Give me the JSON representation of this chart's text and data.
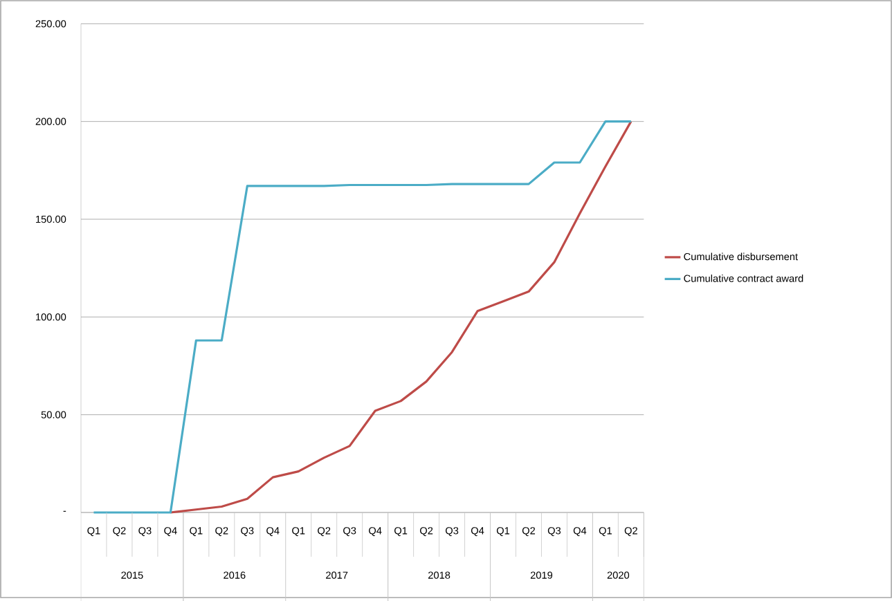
{
  "chart_data": {
    "type": "line",
    "categories": [
      "Q1",
      "Q2",
      "Q3",
      "Q4",
      "Q1",
      "Q2",
      "Q3",
      "Q4",
      "Q1",
      "Q2",
      "Q3",
      "Q4",
      "Q1",
      "Q2",
      "Q3",
      "Q4",
      "Q1",
      "Q2",
      "Q3",
      "Q4",
      "Q1",
      "Q2"
    ],
    "series": [
      {
        "name": "Cumulative disbursement",
        "color": "#be4b48",
        "values": [
          null,
          null,
          null,
          0,
          1.5,
          3,
          7,
          18,
          21,
          28,
          34,
          52,
          57,
          67,
          82,
          103,
          108,
          113,
          128,
          153,
          177,
          200
        ]
      },
      {
        "name": "Cumulative contract award",
        "color": "#4bacc6",
        "values": [
          0,
          0,
          0,
          0,
          88,
          88,
          167,
          167,
          167,
          167,
          167.5,
          167.5,
          167.5,
          167.5,
          168,
          168,
          168,
          168,
          179,
          179,
          200,
          200
        ]
      }
    ],
    "ylim": [
      0,
      250
    ],
    "yticks": [
      {
        "value": 0,
        "label": "-"
      },
      {
        "value": 50,
        "label": "50.00"
      },
      {
        "value": 100,
        "label": "100.00"
      },
      {
        "value": 150,
        "label": "150.00"
      },
      {
        "value": 200,
        "label": "200.00"
      },
      {
        "value": 250,
        "label": "250.00"
      }
    ],
    "annotations": [
      "2015",
      "2016",
      "2017",
      "2018",
      "2019",
      "2020"
    ],
    "grid": "y",
    "legend": "right",
    "marker": "none",
    "line_style": "solid"
  }
}
